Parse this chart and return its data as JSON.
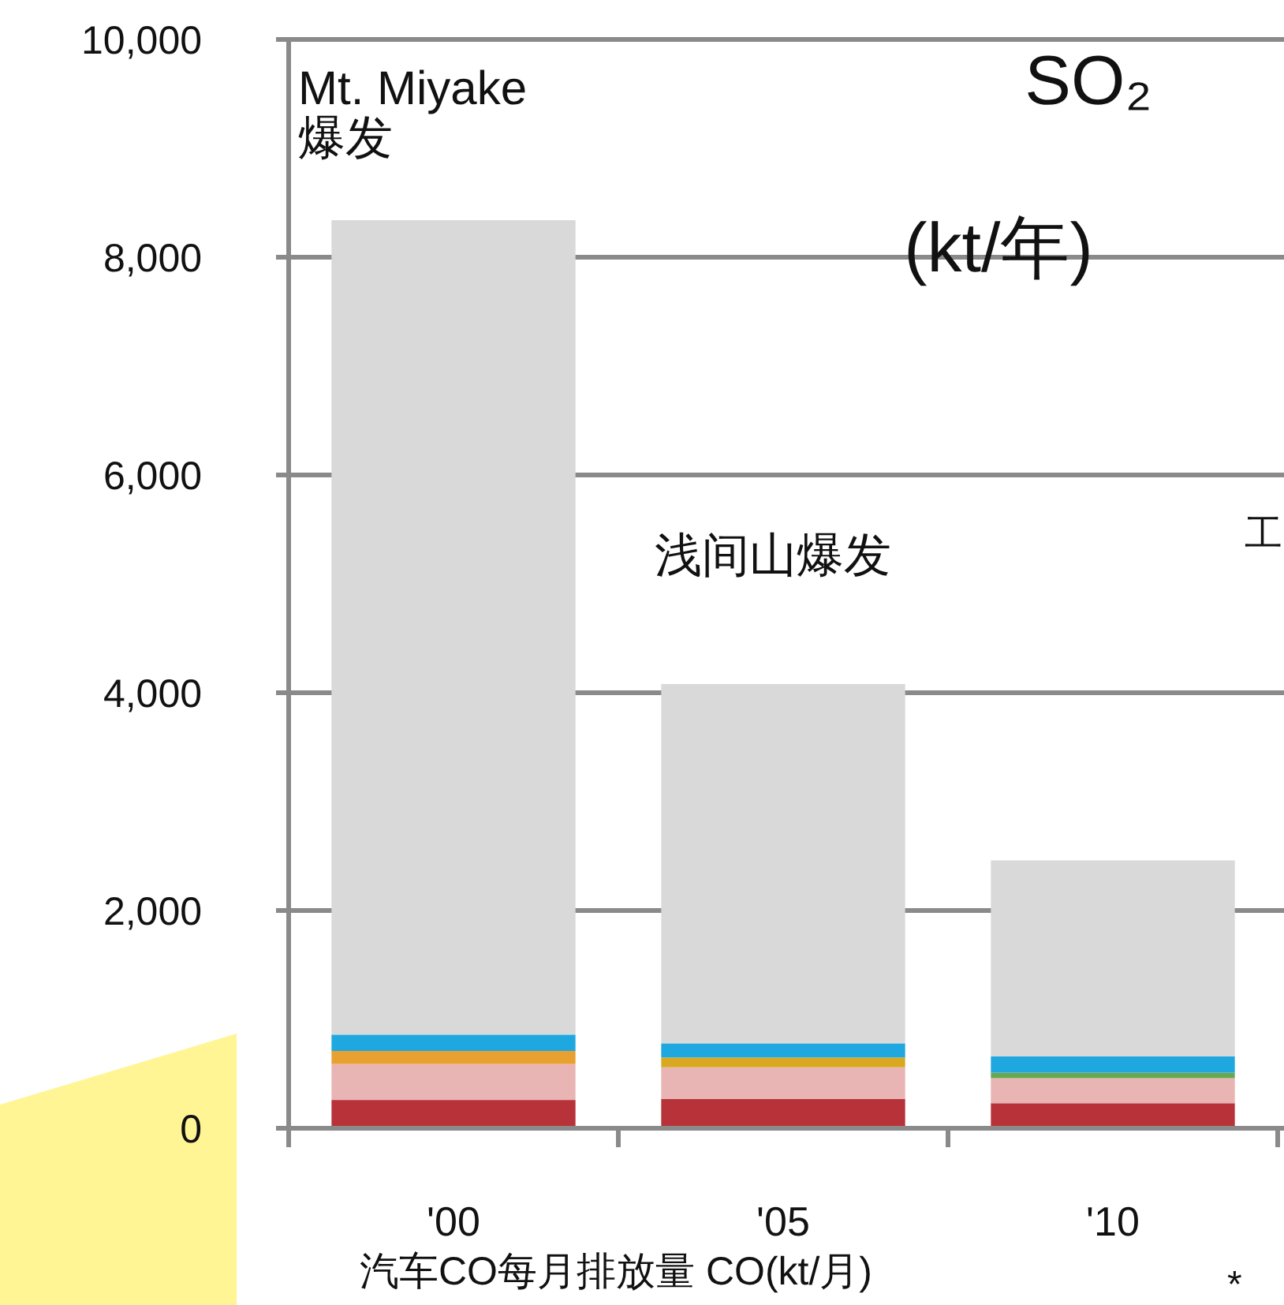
{
  "chart_data": {
    "type": "bar",
    "stacked": true,
    "title": "SO₂",
    "subtitle": "(kt/年)",
    "xlabel": "汽车CO每月排放量  CO(kt/月)",
    "categories": [
      "'00",
      "'05",
      "'10"
    ],
    "series": [
      {
        "color": "#b8323a",
        "values": [
          260,
          270,
          230
        ]
      },
      {
        "color": "#e8b4b4",
        "values": [
          330,
          290,
          230
        ]
      },
      {
        "colors": [
          "#e8a030",
          "#d8a820",
          "#6aa84f"
        ],
        "values": [
          120,
          90,
          50
        ]
      },
      {
        "color": "#1fa8e0",
        "values": [
          150,
          130,
          150
        ]
      },
      {
        "color": "#d9d9d9",
        "values": [
          7480,
          3300,
          1800
        ]
      }
    ],
    "ylim": [
      0,
      10000
    ],
    "yticks": [
      {
        "value": 0,
        "label": "0"
      },
      {
        "value": 2000,
        "label": "2,000"
      },
      {
        "value": 4000,
        "label": "4,000"
      },
      {
        "value": 6000,
        "label": "6,000"
      },
      {
        "value": 8000,
        "label": "8,000"
      },
      {
        "value": 10000,
        "label": "10,000"
      }
    ],
    "grid": "y",
    "annotations": [
      "Mt.  Miyake\n爆发",
      "浅间山爆发",
      "工",
      "*"
    ]
  }
}
